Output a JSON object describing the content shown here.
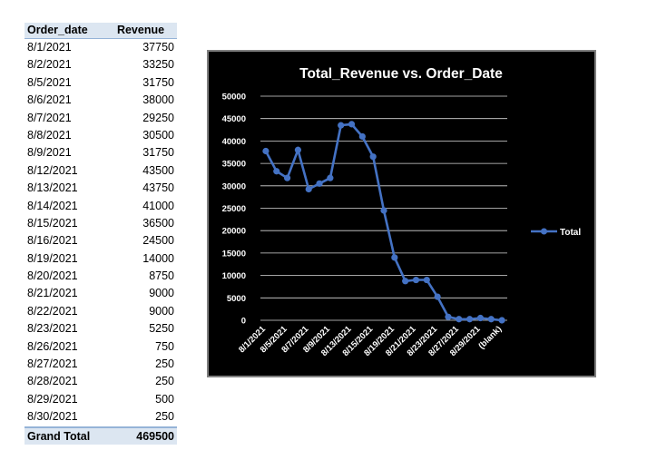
{
  "pivot": {
    "header": {
      "col1": "Order_date",
      "col2": "Revenue"
    },
    "rows": [
      {
        "date": "8/1/2021",
        "revenue": "37750"
      },
      {
        "date": "8/2/2021",
        "revenue": "33250"
      },
      {
        "date": "8/5/2021",
        "revenue": "31750"
      },
      {
        "date": "8/6/2021",
        "revenue": "38000"
      },
      {
        "date": "8/7/2021",
        "revenue": "29250"
      },
      {
        "date": "8/8/2021",
        "revenue": "30500"
      },
      {
        "date": "8/9/2021",
        "revenue": "31750"
      },
      {
        "date": "8/12/2021",
        "revenue": "43500"
      },
      {
        "date": "8/13/2021",
        "revenue": "43750"
      },
      {
        "date": "8/14/2021",
        "revenue": "41000"
      },
      {
        "date": "8/15/2021",
        "revenue": "36500"
      },
      {
        "date": "8/16/2021",
        "revenue": "24500"
      },
      {
        "date": "8/19/2021",
        "revenue": "14000"
      },
      {
        "date": "8/20/2021",
        "revenue": "8750"
      },
      {
        "date": "8/21/2021",
        "revenue": "9000"
      },
      {
        "date": "8/22/2021",
        "revenue": "9000"
      },
      {
        "date": "8/23/2021",
        "revenue": "5250"
      },
      {
        "date": "8/26/2021",
        "revenue": "750"
      },
      {
        "date": "8/27/2021",
        "revenue": "250"
      },
      {
        "date": "8/28/2021",
        "revenue": "250"
      },
      {
        "date": "8/29/2021",
        "revenue": "500"
      },
      {
        "date": "8/30/2021",
        "revenue": "250"
      }
    ],
    "total": {
      "label": "Grand Total",
      "value": "469500"
    }
  },
  "chart_data": {
    "type": "line",
    "title": "Total_Revenue vs. Order_Date",
    "xlabel": "",
    "ylabel": "",
    "categories": [
      "8/1/2021",
      "8/2/2021",
      "8/5/2021",
      "8/6/2021",
      "8/7/2021",
      "8/8/2021",
      "8/9/2021",
      "8/12/2021",
      "8/13/2021",
      "8/14/2021",
      "8/15/2021",
      "8/16/2021",
      "8/19/2021",
      "8/20/2021",
      "8/21/2021",
      "8/22/2021",
      "8/23/2021",
      "8/26/2021",
      "8/27/2021",
      "8/28/2021",
      "8/29/2021",
      "8/30/2021",
      "(blank)"
    ],
    "x_tick_labels": [
      "8/1/2021",
      "8/5/2021",
      "8/7/2021",
      "8/9/2021",
      "8/13/2021",
      "8/15/2021",
      "8/19/2021",
      "8/21/2021",
      "8/23/2021",
      "8/27/2021",
      "8/29/2021",
      "(blank)"
    ],
    "y_ticks": [
      0,
      5000,
      10000,
      15000,
      20000,
      25000,
      30000,
      35000,
      40000,
      45000,
      50000
    ],
    "ylim": [
      0,
      50000
    ],
    "series": [
      {
        "name": "Total",
        "values": [
          37750,
          33250,
          31750,
          38000,
          29250,
          30500,
          31750,
          43500,
          43750,
          41000,
          36500,
          24500,
          14000,
          8750,
          9000,
          9000,
          5250,
          750,
          250,
          250,
          500,
          250,
          0
        ]
      }
    ],
    "legend_position": "right",
    "grid": true,
    "colors": {
      "background": "#000000",
      "line": "#4472c4",
      "text": "#ffffff",
      "grid": "#d9d9d9"
    }
  }
}
